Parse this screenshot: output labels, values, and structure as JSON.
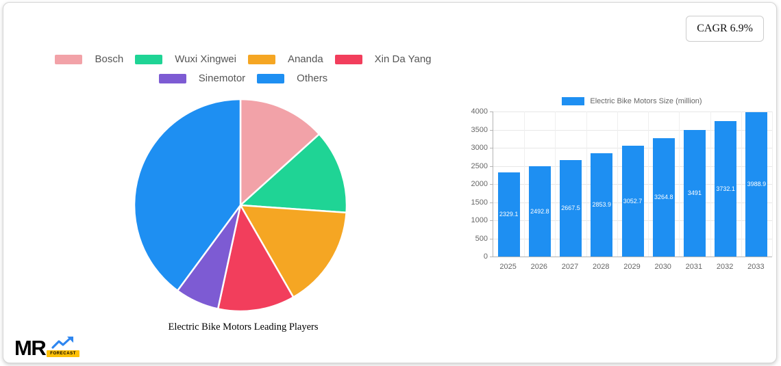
{
  "card": {
    "cagr_label": "CAGR 6.9%"
  },
  "logo": {
    "text": "MR",
    "badge": "FORECAST"
  },
  "chart_data": [
    {
      "type": "pie",
      "title": "Electric Bike Motors Leading Players",
      "labels": [
        "Bosch",
        "Wuxi Xingwei",
        "Ananda",
        "Xin Da Yang",
        "Sinemotor",
        "Others"
      ],
      "values": [
        13.3,
        12.8,
        15.6,
        11.7,
        6.7,
        39.9
      ],
      "colors": [
        "#F2A2A8",
        "#1FD495",
        "#F5A623",
        "#F23E5C",
        "#7D5BD3",
        "#1E8FF2"
      ],
      "start_angle_deg": 0,
      "direction": "clockwise",
      "legend_position": "top",
      "legend_rows": [
        [
          0,
          1,
          2,
          3
        ],
        [
          4,
          5
        ]
      ]
    },
    {
      "type": "bar",
      "series_label": "Electric Bike Motors Size (million)",
      "categories": [
        "2025",
        "2026",
        "2027",
        "2028",
        "2029",
        "2030",
        "2031",
        "2032",
        "2033"
      ],
      "values": [
        2329.1,
        2492.8,
        2667.5,
        2853.9,
        3052.7,
        3264.8,
        3491,
        3732.1,
        3988.9
      ],
      "value_labels": [
        "2329.1",
        "2492.8",
        "2667.5",
        "2853.9",
        "3052.7",
        "3264.8",
        "3491",
        "3732.1",
        "3988.9"
      ],
      "bar_color": "#1E8FF2",
      "ylim": [
        0,
        4000
      ],
      "yticks": [
        0,
        500,
        1000,
        1500,
        2000,
        2500,
        3000,
        3500,
        4000
      ],
      "grid": true,
      "legend_position": "top"
    }
  ]
}
